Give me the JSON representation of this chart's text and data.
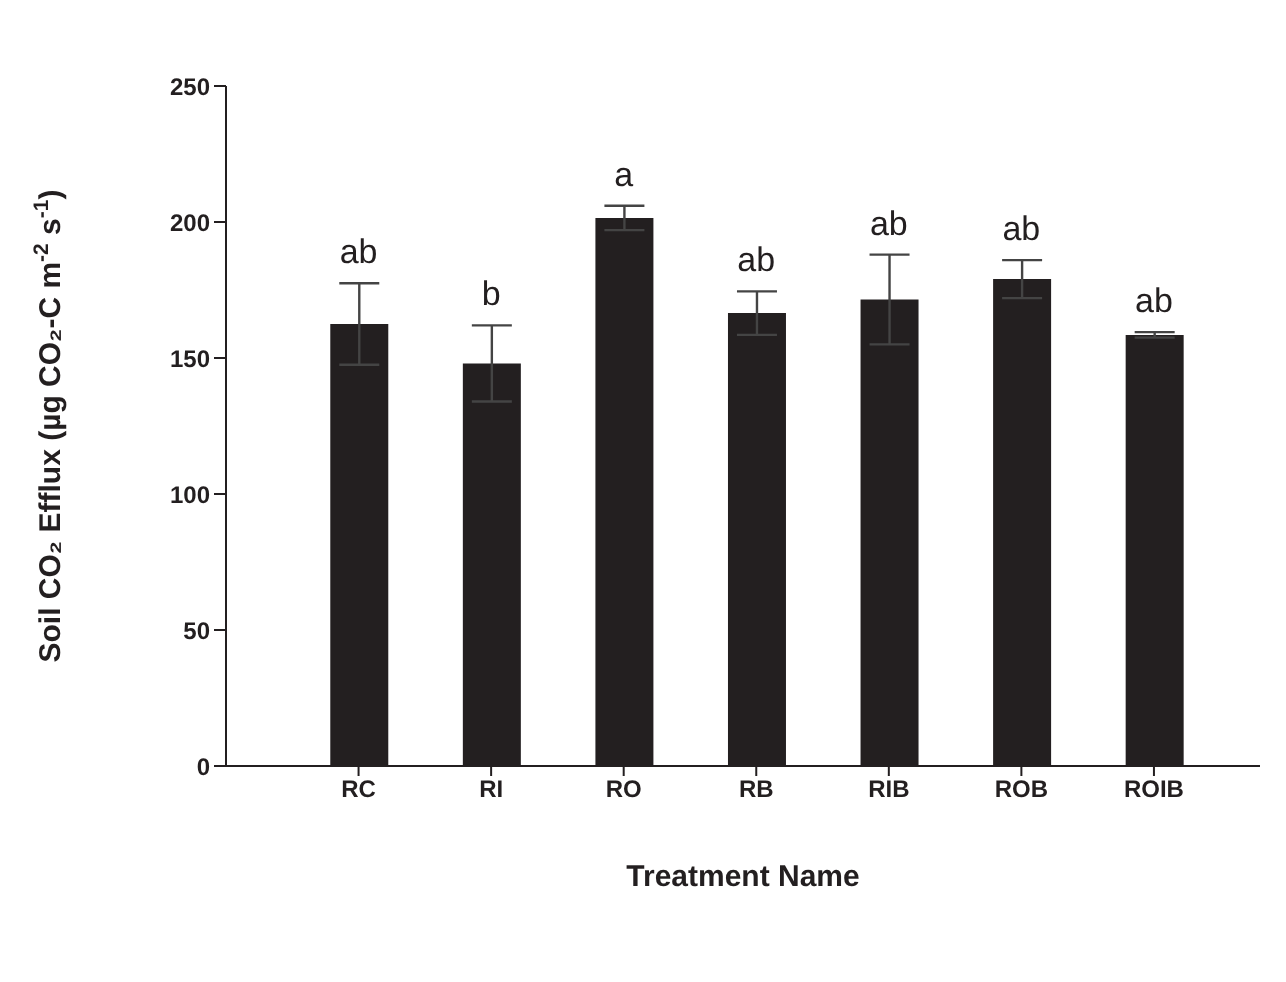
{
  "chart_data": {
    "type": "bar",
    "xlabel": "Treatment Name",
    "ylabel": "Soil CO₂ Efflux (µg CO₂-C m$^{-2}$ s$^{-1}$)",
    "categories": [
      "RC",
      "RI",
      "RO",
      "RB",
      "RIB",
      "ROB",
      "ROIB"
    ],
    "values": [
      162.5,
      148,
      201.5,
      166.5,
      171.5,
      179,
      158.5
    ],
    "errors": [
      15,
      14,
      4.5,
      8,
      16.5,
      7,
      1
    ],
    "color": "#231f20",
    "ylim": [
      0,
      250
    ],
    "yticks": [
      0,
      50,
      100,
      150,
      200,
      250
    ],
    "grid": false,
    "legend": false,
    "annotations": [
      {
        "text": "ab",
        "x": "RC",
        "y": 177.5
      },
      {
        "text": "b",
        "x": "RI",
        "y": 162
      },
      {
        "text": "a",
        "x": "RO",
        "y": 206
      },
      {
        "text": "ab",
        "x": "RB",
        "y": 174.5
      },
      {
        "text": "ab",
        "x": "RIB",
        "y": 188
      },
      {
        "text": "ab",
        "x": "ROB",
        "y": 186
      },
      {
        "text": "ab",
        "x": "ROIB",
        "y": 159.5
      }
    ]
  }
}
